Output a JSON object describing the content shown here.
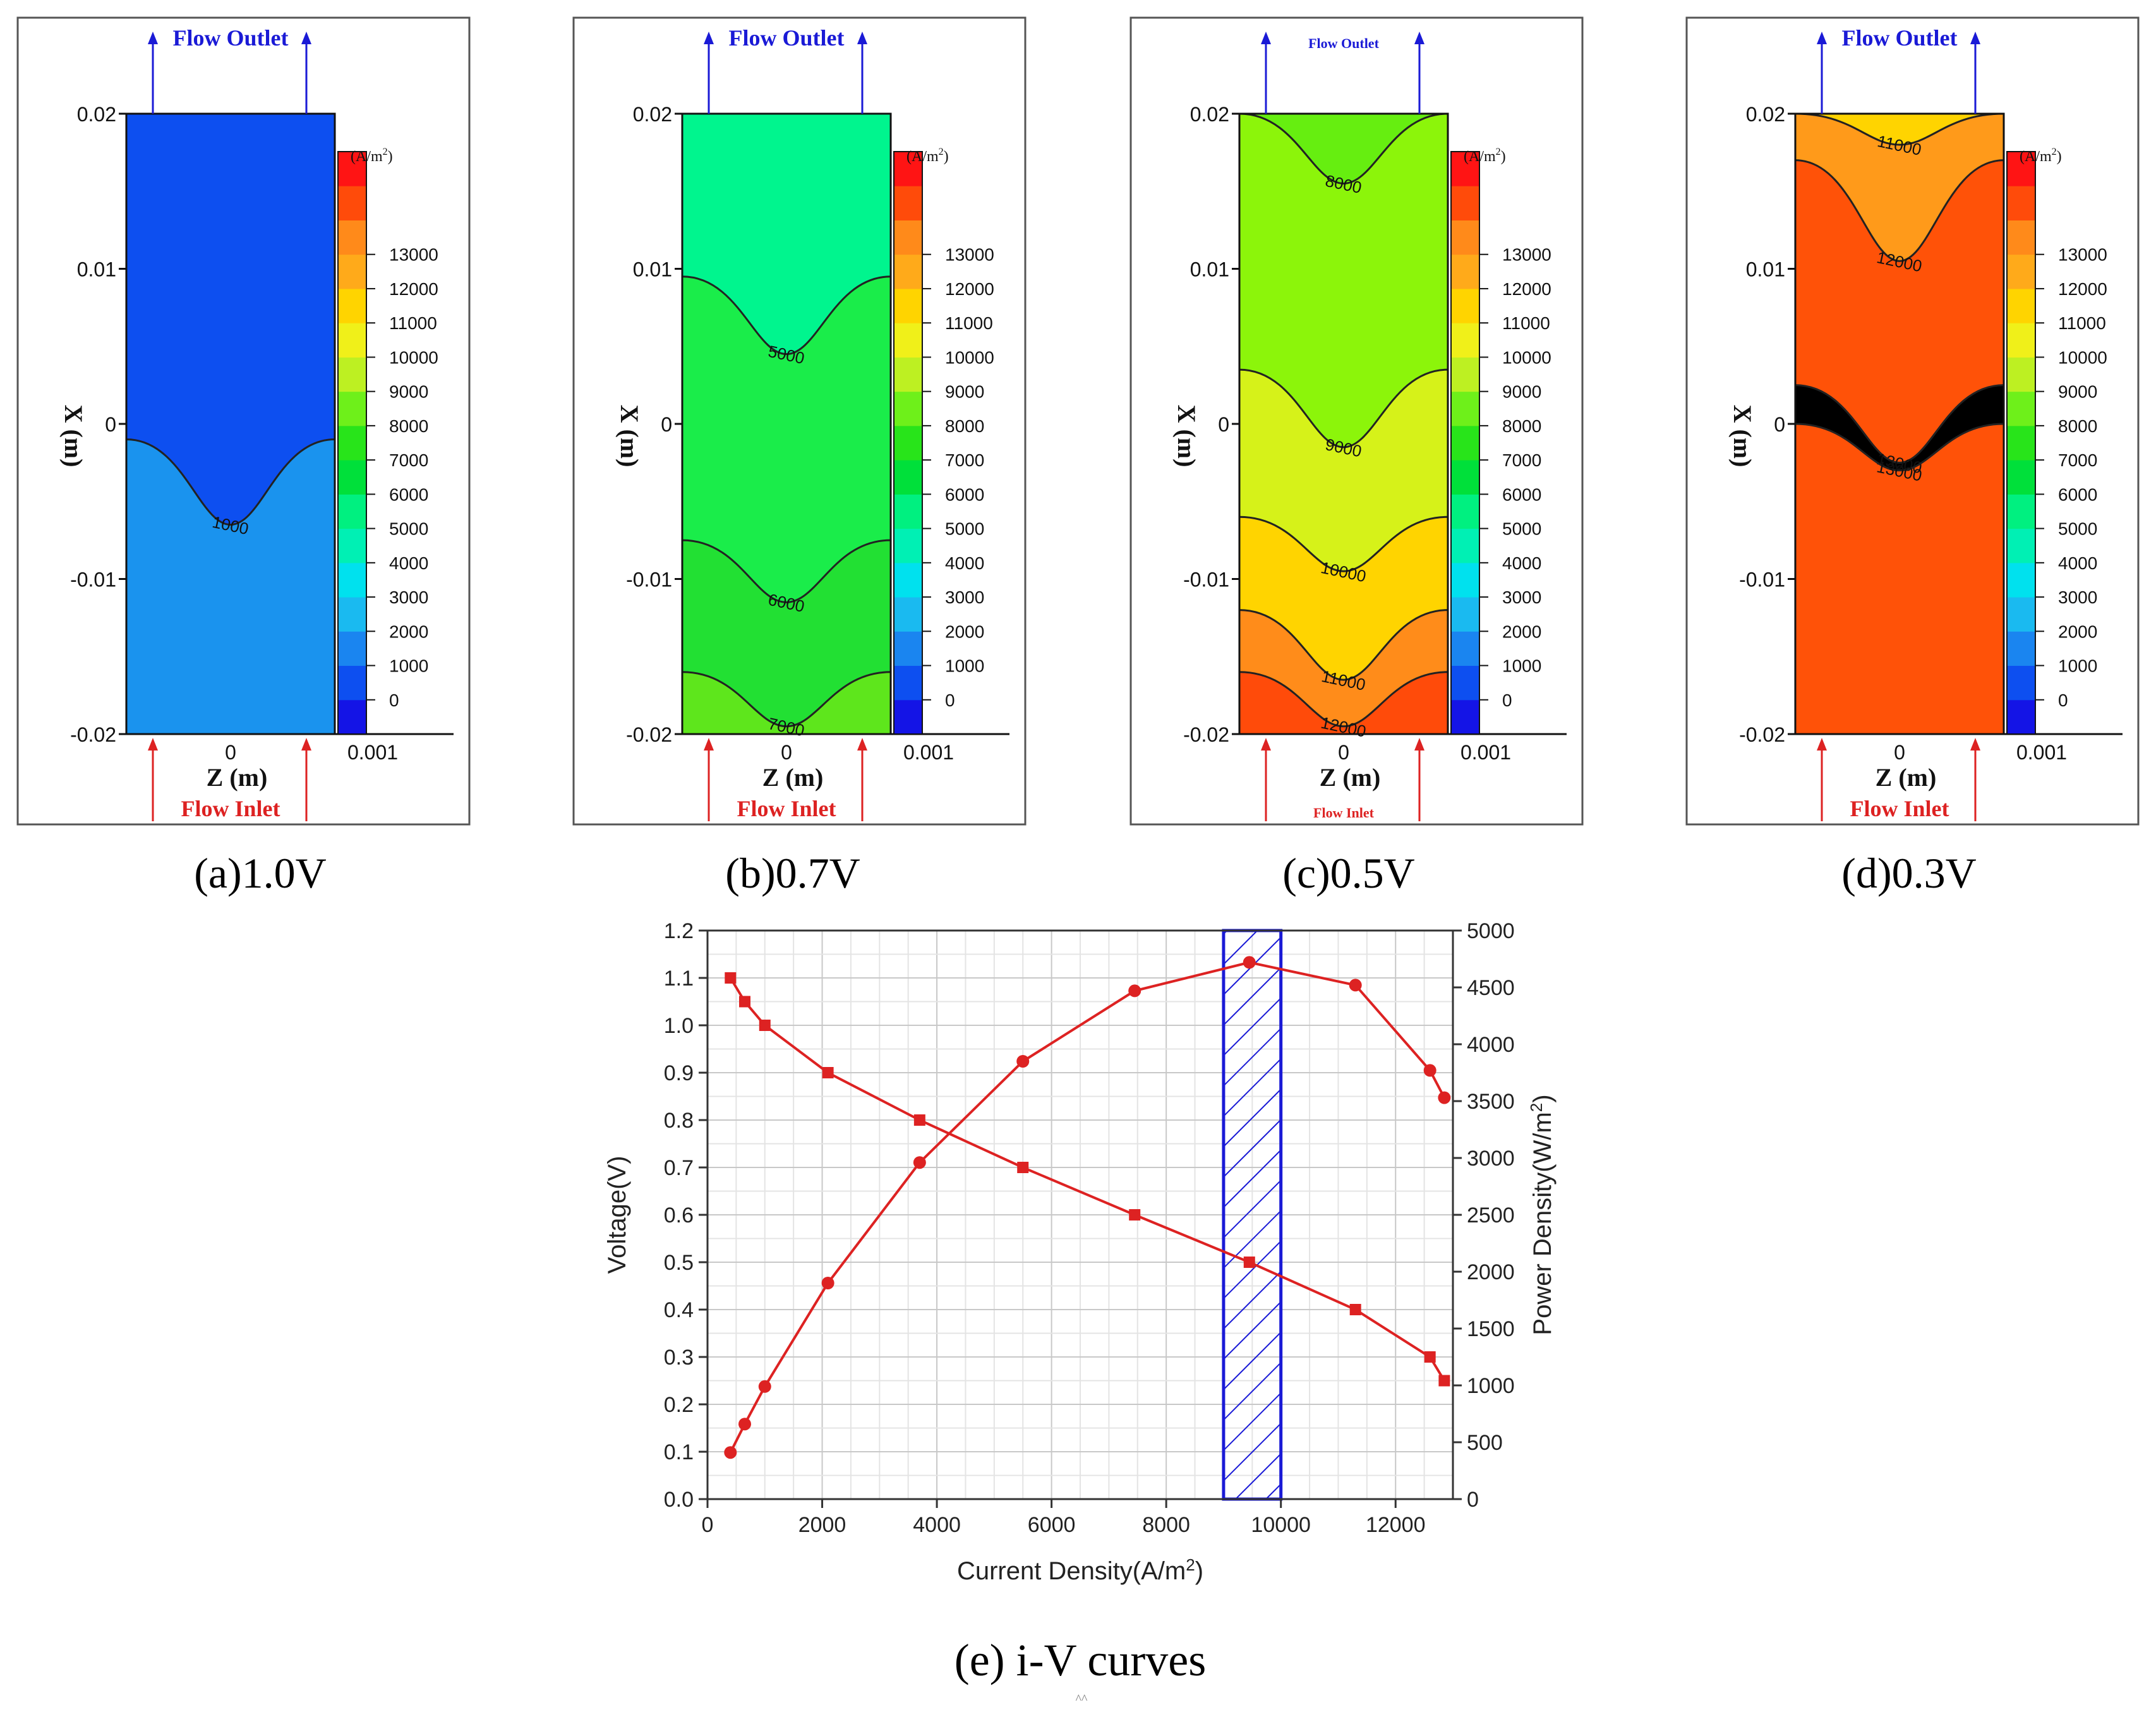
{
  "contour_panels": [
    {
      "id": "a",
      "caption": "(a)1.0V",
      "voltage": 1.0,
      "top_label": "Flow Outlet",
      "bottom_label": "Flow Inlet",
      "x_axis_label": "Z (m)",
      "y_axis_label": "X (m)",
      "y_ticks": [
        "0.02",
        "0.01",
        "0",
        "-0.01",
        "-0.02"
      ],
      "x_ticks": [
        "0",
        "0.001"
      ],
      "region_colors": [
        "#0d4ff0",
        "#1a93ee"
      ],
      "contours": [
        {
          "label": "1000",
          "x_edge": -0.001,
          "x_center": -0.0065
        }
      ]
    },
    {
      "id": "b",
      "caption": "(b)0.7V",
      "voltage": 0.7,
      "top_label": "Flow Outlet",
      "bottom_label": "Flow Inlet",
      "x_axis_label": "Z (m)",
      "y_axis_label": "X (m)",
      "y_ticks": [
        "0.02",
        "0.01",
        "0",
        "-0.01",
        "-0.02"
      ],
      "x_ticks": [
        "0",
        "0.001"
      ],
      "region_colors": [
        "#00f58e",
        "#1aed4a",
        "#22e033",
        "#5ee61c"
      ],
      "contours": [
        {
          "label": "5000",
          "x_edge": 0.0095,
          "x_center": 0.0045
        },
        {
          "label": "6000",
          "x_edge": -0.0075,
          "x_center": -0.0115
        },
        {
          "label": "7000",
          "x_edge": -0.016,
          "x_center": -0.0195
        }
      ]
    },
    {
      "id": "c",
      "caption": "(c)0.5V",
      "voltage": 0.5,
      "top_label": "Flow Outlet",
      "bottom_label": "Flow Inlet",
      "x_axis_label": "Z (m)",
      "y_axis_label": "X (m)",
      "y_ticks": [
        "0.02",
        "0.01",
        "0",
        "-0.01",
        "-0.02"
      ],
      "x_ticks": [
        "0",
        "0.001"
      ],
      "region_colors": [
        "#66ee10",
        "#8cf50a",
        "#d6f219",
        "#ffd400",
        "#ff8c1a",
        "#ff4b0a"
      ],
      "contours": [
        {
          "label": "8000",
          "x_edge": 0.02,
          "x_center": 0.0155
        },
        {
          "label": "9000",
          "x_edge": 0.0035,
          "x_center": -0.0015
        },
        {
          "label": "10000",
          "x_edge": -0.006,
          "x_center": -0.0095
        },
        {
          "label": "11000",
          "x_edge": -0.012,
          "x_center": -0.0165
        },
        {
          "label": "12000",
          "x_edge": -0.016,
          "x_center": -0.0195
        }
      ]
    },
    {
      "id": "d",
      "caption": "(d)0.3V",
      "voltage": 0.3,
      "top_label": "Flow Outlet",
      "bottom_label": "Flow Inlet",
      "x_axis_label": "Z (m)",
      "y_axis_label": "X (m)",
      "y_ticks": [
        "0.02",
        "0.01",
        "0",
        "-0.01",
        "-0.02"
      ],
      "x_ticks": [
        "0",
        "0.001"
      ],
      "region_colors": [
        "#ffd400",
        "#ff9a1a",
        "#ff5208"
      ],
      "contours": [
        {
          "label": "11000",
          "x_edge": 0.02,
          "x_center": 0.018
        },
        {
          "label": "12000",
          "x_edge": 0.017,
          "x_center": 0.0105
        },
        {
          "label": "13000",
          "x_edge": 0.0025,
          "x_center": -0.0025
        },
        {
          "label": "13000",
          "x_edge": 0.0,
          "x_center": -0.003
        }
      ]
    }
  ],
  "colorbar": {
    "unit_text": "(A/m",
    "unit_sup": "2",
    "unit_close": ")",
    "levels": [
      "0",
      "1000",
      "2000",
      "3000",
      "4000",
      "5000",
      "6000",
      "7000",
      "8000",
      "9000",
      "10000",
      "11000",
      "12000",
      "13000"
    ],
    "colors": [
      "#1414e6",
      "#0d4ff0",
      "#1a85f0",
      "#1abaf0",
      "#00e1ee",
      "#00f0b4",
      "#00f080",
      "#00e03a",
      "#28e41a",
      "#6ef01a",
      "#bdf022",
      "#f0f019",
      "#ffd400",
      "#ffaa1a",
      "#ff8a1a",
      "#ff4b0a",
      "#ff1414"
    ]
  },
  "chart_data": {
    "type": "line",
    "caption": "(e) i-V curves",
    "caption_mark": "^^",
    "xlabel": "Current Density(A/m",
    "xlabel_sup": "2",
    "xlabel_close": ")",
    "ylabel_left": "Voltage(V)",
    "ylabel_right": "Power Density(W/m",
    "ylabel_right_sup": "2",
    "ylabel_right_close": ")",
    "xlim": [
      0,
      13000
    ],
    "ylim_left": [
      0,
      1.2
    ],
    "ylim_right": [
      0,
      5000
    ],
    "x_ticks": [
      "0",
      "2000",
      "4000",
      "6000",
      "8000",
      "10000",
      "12000"
    ],
    "y_left_ticks": [
      "0.0",
      "0.1",
      "0.2",
      "0.3",
      "0.4",
      "0.5",
      "0.6",
      "0.7",
      "0.8",
      "0.9",
      "1.0",
      "1.1",
      "1.2"
    ],
    "y_right_ticks": [
      "0",
      "500",
      "1000",
      "1500",
      "2000",
      "2500",
      "3000",
      "3500",
      "4000",
      "4500",
      "5000"
    ],
    "grid": true,
    "series": [
      {
        "name": "Voltage",
        "axis": "left",
        "marker": "square",
        "color": "#dd2222",
        "x": [
          400,
          650,
          1000,
          2100,
          3700,
          5500,
          7450,
          9450,
          11300,
          12600,
          12850
        ],
        "y": [
          1.1,
          1.05,
          1.0,
          0.9,
          0.8,
          0.7,
          0.6,
          0.5,
          0.4,
          0.3,
          0.25
        ]
      },
      {
        "name": "Power Density",
        "axis": "right",
        "marker": "circle",
        "color": "#dd2222",
        "x": [
          400,
          650,
          1000,
          2100,
          3700,
          5500,
          7450,
          9450,
          11300,
          12600,
          12850
        ],
        "y": [
          410,
          660,
          990,
          1900,
          2960,
          3850,
          4470,
          4720,
          4520,
          3770,
          3530
        ]
      }
    ],
    "highlight_band": {
      "x_range": [
        9000,
        10000
      ],
      "color": "#1a1ad6",
      "pattern": "hatch"
    }
  }
}
